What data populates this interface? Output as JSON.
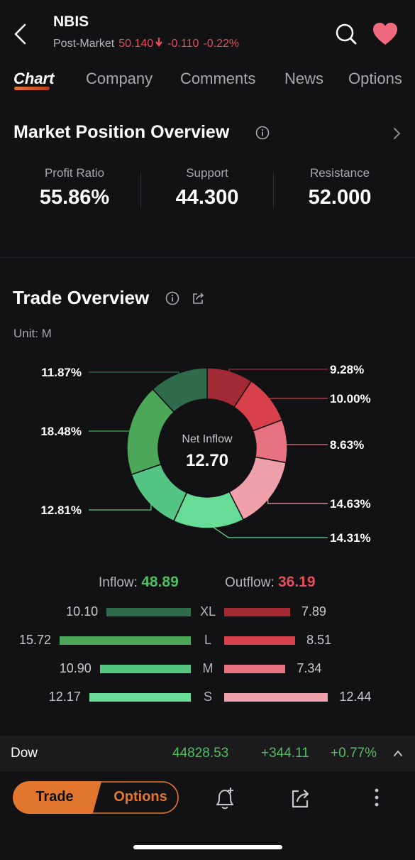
{
  "header": {
    "ticker": "NBIS",
    "session_label": "Post-Market",
    "price": "50.140",
    "change": "-0.110",
    "change_pct": "-0.22%",
    "icons": [
      "back-arrow-icon",
      "search-icon",
      "heart-icon"
    ]
  },
  "tabs": [
    "Chart",
    "Company",
    "Comments",
    "News",
    "Options"
  ],
  "active_tab": "Chart",
  "market_position": {
    "title": "Market Position Overview",
    "stats": [
      {
        "label": "Profit Ratio",
        "value": "55.86%"
      },
      {
        "label": "Support",
        "value": "44.300"
      },
      {
        "label": "Resistance",
        "value": "52.000"
      }
    ]
  },
  "trade_overview": {
    "title": "Trade Overview",
    "unit": "Unit: M",
    "center_label": "Net Inflow",
    "center_value": "12.70",
    "inflow_label": "Inflow:",
    "inflow_value": "48.89",
    "outflow_label": "Outflow:",
    "outflow_value": "36.19",
    "rows": [
      {
        "size": "XL",
        "inflow": "10.10",
        "outflow": "7.89"
      },
      {
        "size": "L",
        "inflow": "15.72",
        "outflow": "8.51"
      },
      {
        "size": "M",
        "inflow": "10.90",
        "outflow": "7.34"
      },
      {
        "size": "S",
        "inflow": "12.17",
        "outflow": "12.44"
      }
    ]
  },
  "chart_data": {
    "type": "pie",
    "series": [
      {
        "label": "9.28%",
        "value": 9.28,
        "color": "#a32a35"
      },
      {
        "label": "10.00%",
        "value": 10.0,
        "color": "#d8404c"
      },
      {
        "label": "8.63%",
        "value": 8.63,
        "color": "#e8727f"
      },
      {
        "label": "14.63%",
        "value": 14.63,
        "color": "#f0a0aa"
      },
      {
        "label": "14.31%",
        "value": 14.31,
        "color": "#66dc96"
      },
      {
        "label": "12.81%",
        "value": 12.81,
        "color": "#55c584"
      },
      {
        "label": "18.48%",
        "value": 18.48,
        "color": "#4aa858"
      },
      {
        "label": "11.87%",
        "value": 11.87,
        "color": "#2f6b4c"
      }
    ],
    "bars": {
      "inflow": [
        10.1,
        15.72,
        10.9,
        12.17
      ],
      "outflow": [
        7.89,
        8.51,
        7.34,
        12.44
      ],
      "inflow_colors": [
        "#2f6b4c",
        "#4aa858",
        "#55c584",
        "#66dc96"
      ],
      "outflow_colors": [
        "#a32a35",
        "#d8404c",
        "#e8727f",
        "#f0a0aa"
      ]
    }
  },
  "index_ticker": {
    "name": "Dow",
    "value": "44828.53",
    "change": "+344.11",
    "change_pct": "+0.77%"
  },
  "bottom_bar": {
    "trade_label": "Trade",
    "options_label": "Options",
    "icons": [
      "bell-plus-icon",
      "share-icon",
      "more-vertical-icon"
    ]
  }
}
